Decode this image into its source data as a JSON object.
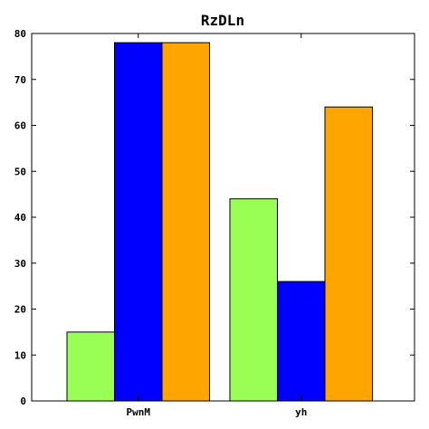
{
  "chart_data": {
    "type": "bar",
    "title": "RzDLn",
    "xlabel": "",
    "ylabel": "",
    "categories": [
      "PwnM",
      "yh"
    ],
    "series": [
      {
        "values": [
          15,
          44
        ],
        "color": "#99ff55"
      },
      {
        "values": [
          78,
          26
        ],
        "color": "#0000ff"
      },
      {
        "values": [
          78,
          64
        ],
        "color": "#ffa500"
      }
    ],
    "ylim": [
      0,
      80
    ],
    "yticks": [
      0,
      10,
      20,
      30,
      40,
      50,
      60,
      70,
      80
    ],
    "grid": false,
    "legend": "none"
  }
}
